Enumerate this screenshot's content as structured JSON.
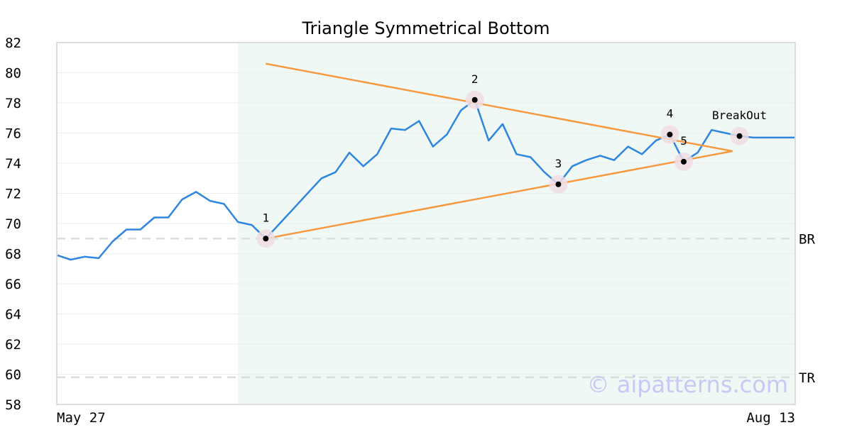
{
  "chart_data": {
    "type": "line",
    "title": "Triangle Symmetrical Bottom",
    "xlabel": "",
    "ylabel": "",
    "ylim": [
      58,
      82
    ],
    "y_ticks": [
      58,
      60,
      62,
      64,
      66,
      68,
      70,
      72,
      74,
      76,
      78,
      80,
      82
    ],
    "x_tick_labels": [
      "May 27",
      "Aug 13"
    ],
    "grid": "horizontal",
    "series": [
      {
        "color": "#2e86de",
        "values": [
          67.9,
          67.6,
          67.8,
          67.7,
          68.8,
          69.6,
          69.6,
          70.4,
          70.4,
          71.6,
          72.1,
          71.5,
          71.3,
          70.1,
          69.9,
          69.0,
          70.0,
          71.0,
          72.0,
          73.0,
          73.4,
          74.7,
          73.8,
          74.6,
          76.3,
          76.2,
          76.8,
          75.1,
          75.9,
          77.5,
          78.2,
          75.5,
          76.6,
          74.6,
          74.4,
          73.4,
          72.6,
          73.8,
          74.2,
          74.5,
          74.2,
          75.1,
          74.6,
          75.5,
          75.9,
          74.1,
          74.7,
          76.2,
          76.0,
          75.8,
          75.7,
          75.7,
          75.7,
          75.7
        ]
      }
    ],
    "pattern_region": {
      "start_index": 13,
      "end_index": 53,
      "color": "#e8f5f0"
    },
    "trendlines": [
      {
        "color": "#f59a42",
        "start": {
          "index": 15,
          "y": 80.6
        },
        "end": {
          "index": 48.5,
          "y": 74.8
        }
      },
      {
        "color": "#f59a42",
        "start": {
          "index": 15,
          "y": 69.0
        },
        "end": {
          "index": 48.5,
          "y": 74.8
        }
      }
    ],
    "pivots": [
      {
        "label": "1",
        "index": 15,
        "y": 69.0
      },
      {
        "label": "2",
        "index": 30,
        "y": 78.2
      },
      {
        "label": "3",
        "index": 36,
        "y": 72.6
      },
      {
        "label": "4",
        "index": 44,
        "y": 75.9
      },
      {
        "label": "5",
        "index": 45,
        "y": 74.1
      },
      {
        "label": "BreakOut",
        "index": 49,
        "y": 75.8
      }
    ],
    "reference_lines": [
      {
        "label": "BR",
        "y": 69.0,
        "color": "#dddddd"
      },
      {
        "label": "TR",
        "y": 59.8,
        "color": "#dddddd"
      }
    ],
    "colors": {
      "line": "#2e86de",
      "trendline": "#f59a42",
      "marker_halo": "#f0dde4",
      "marker_dot": "#000000",
      "grid": "#eeeeee",
      "border": "#dddddd",
      "pattern_fill": "#e8f5f0"
    },
    "watermark": "© aipatterns.com"
  }
}
